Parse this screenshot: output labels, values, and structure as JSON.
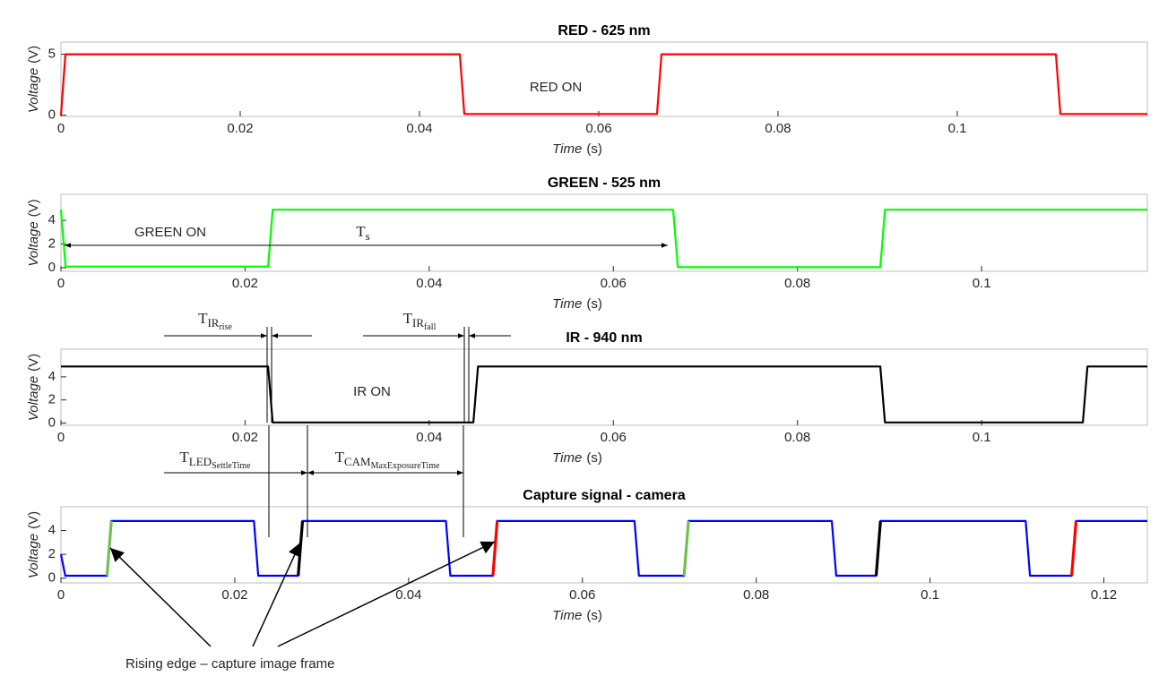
{
  "chart_data": [
    {
      "type": "line",
      "title": "RED - 625 nm",
      "x_label": "Time",
      "x_unit": "(s)",
      "y_label": "Voltage",
      "y_unit": "(V)",
      "xlim": [
        0,
        0.1212
      ],
      "xticks": [
        0,
        0.02,
        0.04,
        0.06,
        0.08,
        0.1
      ],
      "ylim": [
        -0.1,
        6
      ],
      "yticks": [
        0,
        5
      ],
      "series": [
        {
          "color": "#ff0000",
          "x": [
            0,
            0.0005,
            0.0445,
            0.045,
            0.0665,
            0.067,
            0.111,
            0.1115,
            0.1212
          ],
          "values": [
            0,
            5,
            5,
            0.1,
            0.1,
            5,
            5,
            0.1,
            0.1
          ]
        }
      ],
      "annotations": [
        "RED ON"
      ]
    },
    {
      "type": "line",
      "title": "GREEN - 525 nm",
      "x_label": "Time",
      "x_unit": "(s)",
      "y_label": "Voltage",
      "y_unit": "(V)",
      "xlim": [
        0,
        0.118
      ],
      "xticks": [
        0,
        0.02,
        0.04,
        0.06,
        0.08,
        0.1
      ],
      "ylim": [
        -0.3,
        6.2
      ],
      "yticks": [
        0,
        2,
        4
      ],
      "series": [
        {
          "color": "#00ff00",
          "x": [
            0,
            0.0005,
            0.0225,
            0.023,
            0.0665,
            0.067,
            0.089,
            0.0895,
            0.118
          ],
          "values": [
            4.9,
            0.1,
            0.1,
            4.9,
            4.9,
            0.05,
            0.05,
            4.9,
            4.9
          ]
        }
      ],
      "annotations": [
        "GREEN ON",
        {
          "text": "T",
          "sub": "s"
        }
      ]
    },
    {
      "type": "line",
      "title": "IR - 940 nm",
      "x_label": "Time",
      "x_unit": "(s)",
      "y_label": "Voltage",
      "y_unit": "(V)",
      "xlim": [
        0,
        0.118
      ],
      "xticks": [
        0,
        0.02,
        0.04,
        0.06,
        0.08,
        0.1
      ],
      "ylim": [
        -0.2,
        6.4
      ],
      "yticks": [
        0,
        2,
        4
      ],
      "series": [
        {
          "color": "#000000",
          "x": [
            0,
            0.0225,
            0.023,
            0.0448,
            0.0453,
            0.089,
            0.0895,
            0.111,
            0.1115,
            0.118
          ],
          "values": [
            4.9,
            4.9,
            0.05,
            0.05,
            4.9,
            4.9,
            0.05,
            0.05,
            4.9,
            4.9
          ]
        }
      ],
      "annotations": [
        "IR ON",
        {
          "text": "T",
          "sub": "IR",
          "subsub": "rise"
        },
        {
          "text": "T",
          "sub": "IR",
          "subsub": "fall"
        },
        {
          "text": "T",
          "sub": "LED",
          "subsub": "SettleTime"
        },
        {
          "text": "T",
          "sub": "CAM",
          "subsub": "MaxExposureTime"
        }
      ]
    },
    {
      "type": "line",
      "title": "Capture signal - camera",
      "x_label": "Time",
      "x_unit": "(s)",
      "y_label": "Voltage",
      "y_unit": "(V)",
      "xlim": [
        0,
        0.125
      ],
      "xticks": [
        0,
        0.02,
        0.04,
        0.06,
        0.08,
        0.1,
        0.12
      ],
      "ylim": [
        -0.4,
        6
      ],
      "yticks": [
        0,
        2,
        4
      ],
      "series": [
        {
          "color": "#0000ff",
          "x": [
            0,
            0.0005,
            0.0053,
            0.0058,
            0.0222,
            0.0227,
            0.0273,
            0.0278,
            0.0443,
            0.0448,
            0.0497,
            0.0502,
            0.066,
            0.0665,
            0.0717,
            0.0722,
            0.0887,
            0.0892,
            0.0938,
            0.0943,
            0.111,
            0.1115,
            0.1163,
            0.1168,
            0.125
          ],
          "values": [
            2,
            0.2,
            0.2,
            4.8,
            4.8,
            0.2,
            0.2,
            4.8,
            4.8,
            0.2,
            0.2,
            4.8,
            4.8,
            0.2,
            0.2,
            4.8,
            4.8,
            0.2,
            0.2,
            4.8,
            4.8,
            0.2,
            0.2,
            4.8,
            4.8
          ]
        },
        {
          "color": "#70c050",
          "x": [
            0.0053,
            0.0058,
            0.04,
            0.0717,
            0.0722
          ],
          "values": [
            0.2,
            4.8,
            null,
            0.2,
            4.8
          ]
        },
        {
          "color": "#000000",
          "x": [
            0.0273,
            0.0278,
            0.06,
            0.0938,
            0.0943
          ],
          "values": [
            0.2,
            4.8,
            null,
            0.2,
            4.8
          ]
        },
        {
          "color": "#ff0000",
          "x": [
            0.0497,
            0.0502,
            0.08,
            0.1163,
            0.1168
          ],
          "values": [
            0.2,
            4.8,
            null,
            0.2,
            4.8
          ]
        }
      ],
      "annotations": [
        "Rising edge – capture image frame"
      ]
    }
  ]
}
